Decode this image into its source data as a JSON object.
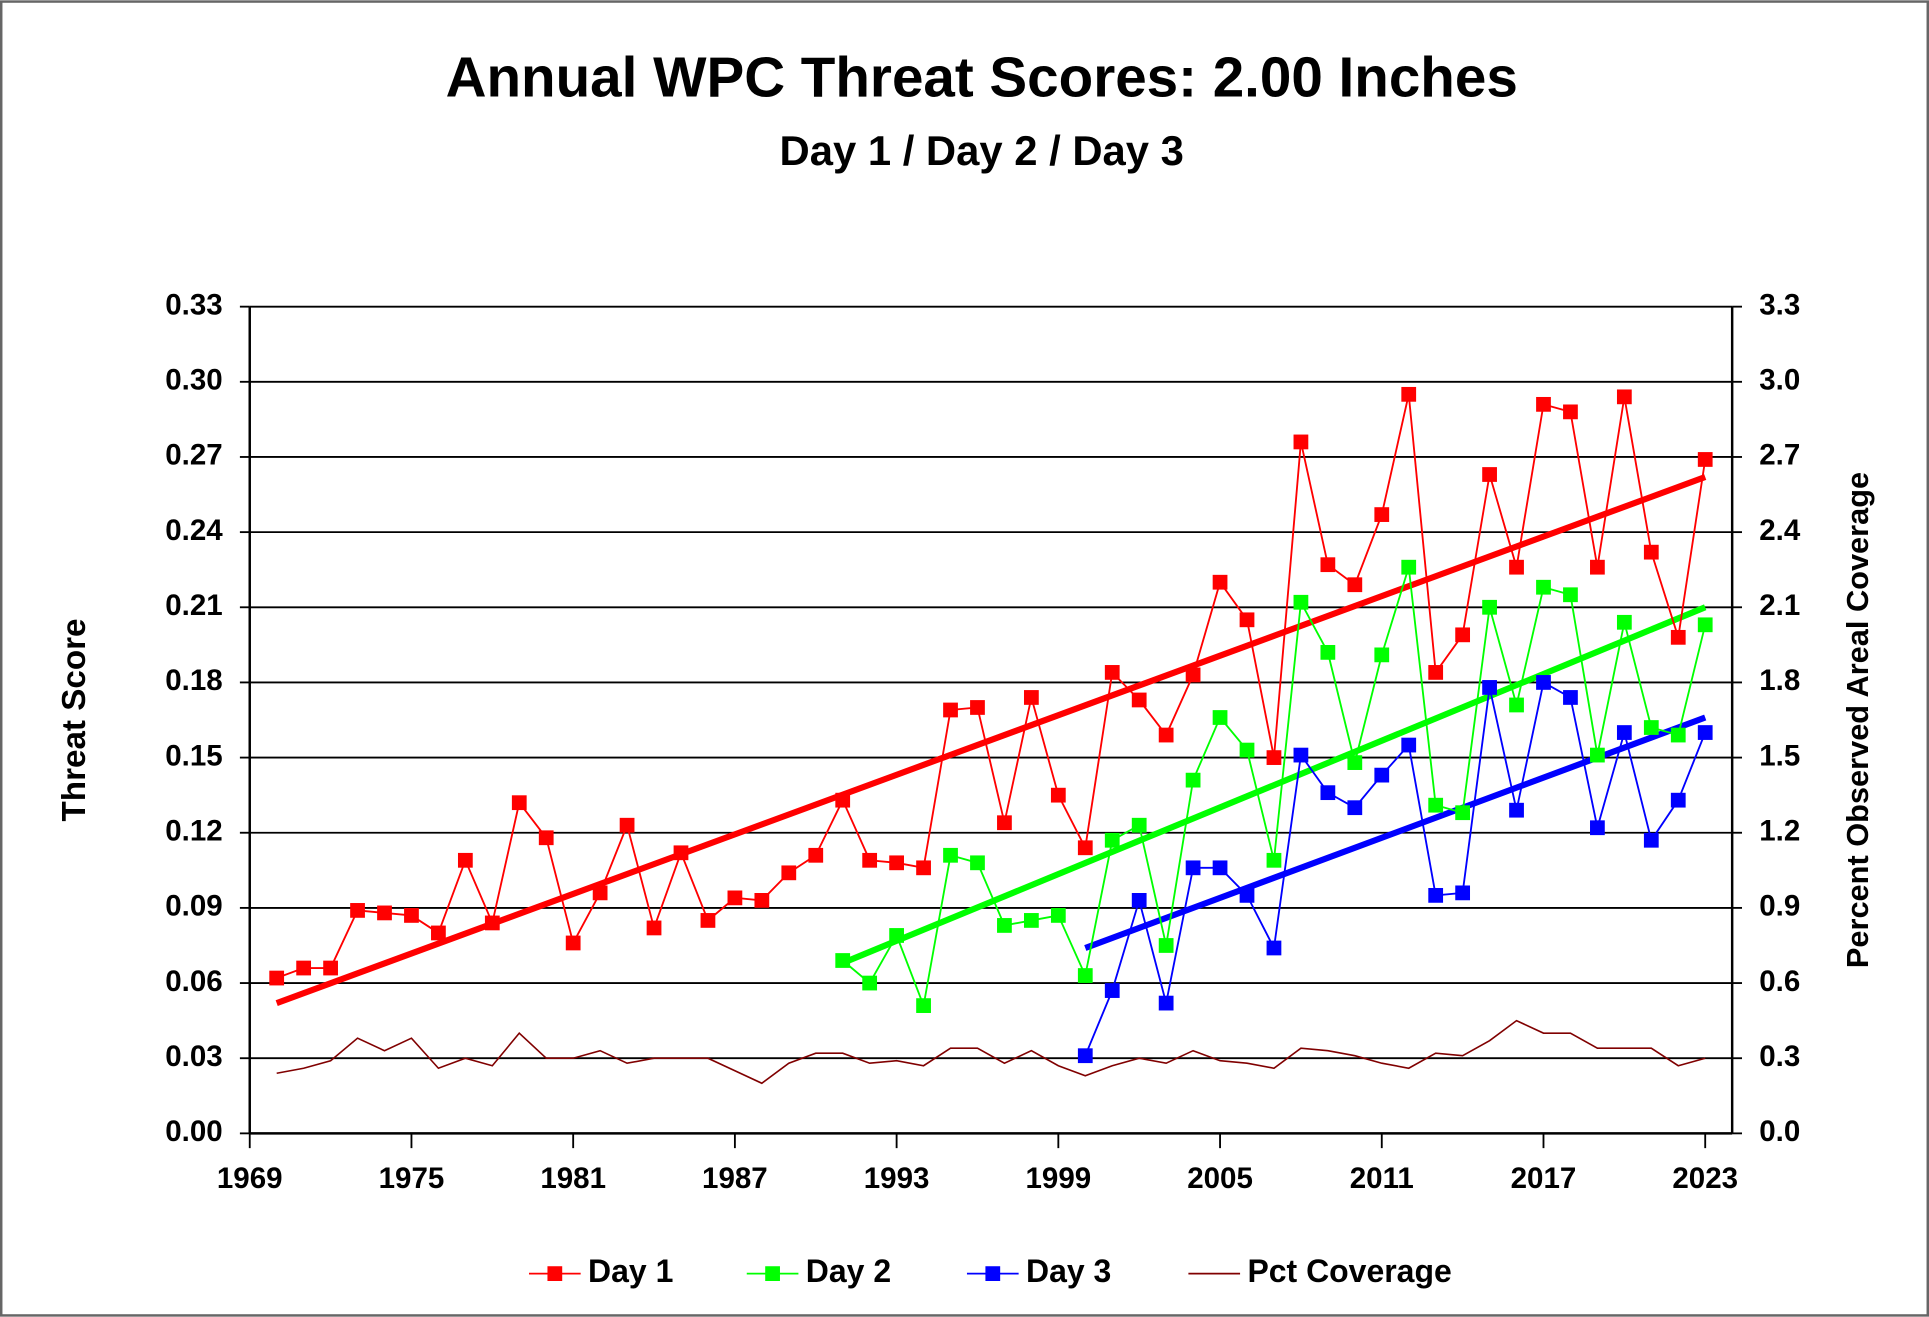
{
  "chart_data": {
    "type": "line",
    "title": "Annual WPC Threat Scores:  2.00 Inches",
    "subtitle": "Day 1 / Day 2 / Day 3",
    "y_label": "Threat Score",
    "y2_label": "Percent Observed Areal Coverage",
    "x": [
      1970,
      1971,
      1972,
      1973,
      1974,
      1975,
      1976,
      1977,
      1978,
      1979,
      1980,
      1981,
      1982,
      1983,
      1984,
      1985,
      1986,
      1987,
      1988,
      1989,
      1990,
      1991,
      1992,
      1993,
      1994,
      1995,
      1996,
      1997,
      1998,
      1999,
      2000,
      2001,
      2002,
      2003,
      2004,
      2005,
      2006,
      2007,
      2008,
      2009,
      2010,
      2011,
      2012,
      2013,
      2014,
      2015,
      2016,
      2017,
      2018,
      2019,
      2020,
      2021,
      2022,
      2023
    ],
    "series": [
      {
        "name": "Day 1",
        "color": "#ff0000",
        "marker": "square",
        "values": [
          0.062,
          0.066,
          0.066,
          0.089,
          0.088,
          0.087,
          0.08,
          0.109,
          0.084,
          0.132,
          0.118,
          0.076,
          0.096,
          0.123,
          0.082,
          0.112,
          0.085,
          0.094,
          0.093,
          0.104,
          0.111,
          0.133,
          0.109,
          0.108,
          0.106,
          0.169,
          0.17,
          0.124,
          0.174,
          0.135,
          0.114,
          0.184,
          0.173,
          0.159,
          0.183,
          0.22,
          0.205,
          0.15,
          0.276,
          0.227,
          0.219,
          0.247,
          0.295,
          0.184,
          0.199,
          0.263,
          0.226,
          0.291,
          0.288,
          0.226,
          0.294,
          0.232,
          0.198,
          0.269
        ]
      },
      {
        "name": "Day 2",
        "color": "#00ff00",
        "marker": "square",
        "values": [
          null,
          null,
          null,
          null,
          null,
          null,
          null,
          null,
          null,
          null,
          null,
          null,
          null,
          null,
          null,
          null,
          null,
          null,
          null,
          null,
          null,
          0.069,
          0.06,
          0.079,
          0.051,
          0.111,
          0.108,
          0.083,
          0.085,
          0.087,
          0.063,
          0.117,
          0.123,
          0.075,
          0.141,
          0.166,
          0.153,
          0.109,
          0.212,
          0.192,
          0.148,
          0.191,
          0.226,
          0.131,
          0.128,
          0.21,
          0.171,
          0.218,
          0.215,
          0.151,
          0.204,
          0.162,
          0.159,
          0.203
        ]
      },
      {
        "name": "Day 3",
        "color": "#0000ff",
        "marker": "square",
        "values": [
          null,
          null,
          null,
          null,
          null,
          null,
          null,
          null,
          null,
          null,
          null,
          null,
          null,
          null,
          null,
          null,
          null,
          null,
          null,
          null,
          null,
          null,
          null,
          null,
          null,
          null,
          null,
          null,
          null,
          null,
          0.031,
          0.057,
          0.093,
          0.052,
          0.106,
          0.106,
          0.095,
          0.074,
          0.151,
          0.136,
          0.13,
          0.143,
          0.155,
          0.095,
          0.096,
          0.178,
          0.129,
          0.18,
          0.174,
          0.122,
          0.16,
          0.117,
          0.133,
          0.16
        ]
      },
      {
        "name": "Pct Coverage",
        "color": "#800000",
        "axis": "y2",
        "values": [
          0.24,
          0.26,
          0.29,
          0.38,
          0.33,
          0.38,
          0.26,
          0.3,
          0.27,
          0.4,
          0.3,
          0.3,
          0.33,
          0.28,
          0.3,
          0.3,
          0.3,
          0.25,
          0.2,
          0.28,
          0.32,
          0.32,
          0.28,
          0.29,
          0.27,
          0.34,
          0.34,
          0.28,
          0.33,
          0.27,
          0.23,
          0.27,
          0.3,
          0.28,
          0.33,
          0.29,
          0.28,
          0.26,
          0.34,
          0.33,
          0.31,
          0.28,
          0.26,
          0.32,
          0.31,
          0.37,
          0.45,
          0.4,
          0.4,
          0.34,
          0.34,
          0.34,
          0.27,
          0.3
        ]
      }
    ],
    "trendlines": [
      {
        "color": "#ff0000",
        "x": [
          1970,
          2023
        ],
        "values": [
          0.052,
          0.262
        ]
      },
      {
        "color": "#00ff00",
        "x": [
          1991,
          2023
        ],
        "values": [
          0.068,
          0.21
        ]
      },
      {
        "color": "#0000ff",
        "x": [
          2000,
          2023
        ],
        "values": [
          0.074,
          0.166
        ]
      }
    ],
    "xlim": [
      1969,
      2024
    ],
    "xticks": [
      1969,
      1975,
      1981,
      1987,
      1993,
      1999,
      2005,
      2011,
      2017,
      2023
    ],
    "ylim": [
      0,
      0.33
    ],
    "yticks": [
      {
        "value": 0,
        "label": "0.00"
      },
      0.03,
      0.06,
      0.09,
      0.12,
      0.15,
      0.18,
      0.21,
      0.24,
      0.27,
      {
        "value": 0.3,
        "label": "0.30"
      },
      0.33
    ],
    "y2lim": [
      0,
      3.3
    ],
    "y2ticks": [
      {
        "value": 0,
        "label": "0.0"
      },
      0.3,
      0.6,
      0.9,
      1.2,
      1.5,
      1.8,
      2.1,
      2.4,
      2.7,
      {
        "value": 3,
        "label": "3.0"
      },
      3.3
    ],
    "grid": true,
    "legend": "bottom"
  }
}
